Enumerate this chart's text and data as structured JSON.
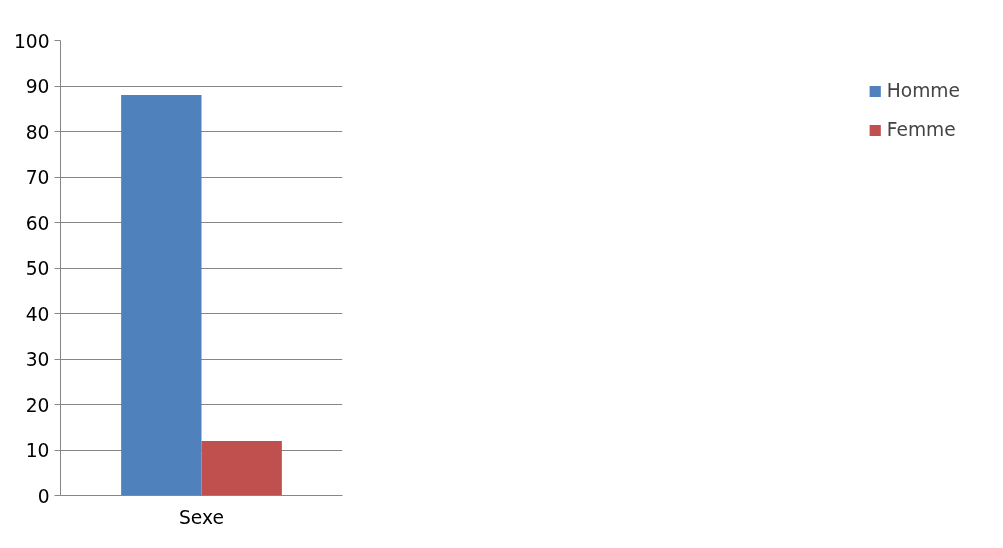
{
  "chart_data": {
    "type": "bar",
    "categories": [
      "Sexe"
    ],
    "series": [
      {
        "name": "Homme",
        "color": "#4f81bd",
        "values": [
          88
        ]
      },
      {
        "name": "Femme",
        "color": "#c0504d",
        "values": [
          12
        ]
      }
    ],
    "ylim": [
      0,
      100
    ],
    "yticks": [
      0,
      10,
      20,
      30,
      40,
      50,
      60,
      70,
      80,
      90,
      100
    ],
    "grid": "y",
    "legend": "right"
  }
}
